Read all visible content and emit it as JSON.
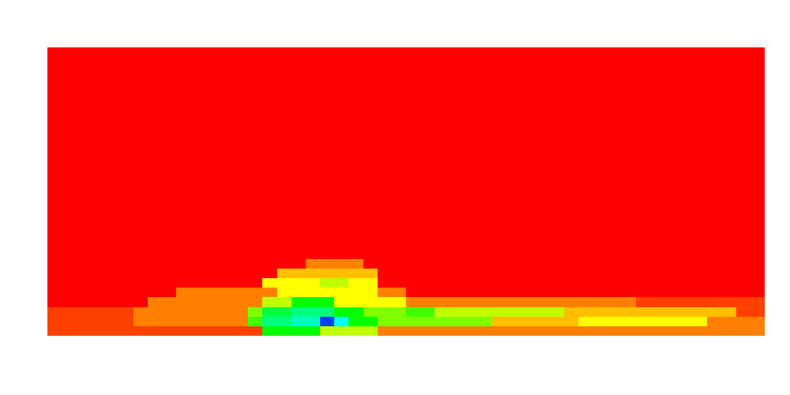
{
  "chart_data": {
    "type": "heatmap",
    "tick_labels": false,
    "zlim": [
      0,
      1
    ],
    "cells": [
      [
        0,
        0,
        0,
        0,
        0,
        0,
        0,
        0,
        0,
        0,
        0,
        0,
        0,
        0,
        0,
        0,
        0,
        0,
        0,
        0,
        0,
        0,
        0,
        0,
        0,
        0,
        0,
        0,
        0,
        0,
        0,
        0,
        0,
        0,
        0,
        0,
        0,
        0,
        0,
        0,
        0,
        0,
        0,
        0,
        0,
        0,
        0,
        0,
        0,
        0
      ],
      [
        0,
        0,
        0,
        0,
        0,
        0,
        0,
        0,
        0,
        0,
        0,
        0,
        0,
        0,
        0,
        0,
        0,
        0,
        0,
        0,
        0,
        0,
        0,
        0,
        0,
        0,
        0,
        0,
        0,
        0,
        0,
        0,
        0,
        0,
        0,
        0,
        0,
        0,
        0,
        0,
        0,
        0,
        0,
        0,
        0,
        0,
        0,
        0,
        0,
        0
      ],
      [
        0,
        0,
        0,
        0,
        0,
        0,
        0,
        0,
        0,
        0,
        0,
        0,
        0,
        0,
        0,
        0,
        0,
        0,
        0,
        0,
        0,
        0,
        0,
        0,
        0,
        0,
        0,
        0,
        0,
        0,
        0,
        0,
        0,
        0,
        0,
        0,
        0,
        0,
        0,
        0,
        0,
        0,
        0,
        0,
        0,
        0,
        0,
        0,
        0,
        0
      ],
      [
        0,
        0,
        0,
        0,
        0,
        0,
        0,
        0,
        0,
        0,
        0,
        0,
        0,
        0,
        0,
        0,
        0,
        0,
        0,
        0,
        0,
        0,
        0,
        0,
        0,
        0,
        0,
        0,
        0,
        0,
        0,
        0,
        0,
        0,
        0,
        0,
        0,
        0,
        0,
        0,
        0,
        0,
        0,
        0,
        0,
        0,
        0,
        0,
        0,
        0
      ],
      [
        0,
        0,
        0,
        0,
        0,
        0,
        0,
        0,
        0,
        0,
        0,
        0,
        0,
        0,
        0,
        0,
        0,
        0,
        0,
        0,
        0,
        0,
        0,
        0,
        0,
        0,
        0,
        0,
        0,
        0,
        0,
        0,
        0,
        0,
        0,
        0,
        0,
        0,
        0,
        0,
        0,
        0,
        0,
        0,
        0,
        0,
        0,
        0,
        0,
        0
      ],
      [
        0,
        0,
        0,
        0,
        0,
        0,
        0,
        0,
        0,
        0,
        0,
        0,
        0,
        0,
        0,
        0,
        0,
        0,
        0,
        0,
        0,
        0,
        0,
        0,
        0,
        0,
        0,
        0,
        0,
        0,
        0,
        0,
        0,
        0,
        0,
        0,
        0,
        0,
        0,
        0,
        0,
        0,
        0,
        0,
        0,
        0,
        0,
        0,
        0,
        0
      ],
      [
        0,
        0,
        0,
        0,
        0,
        0,
        0,
        0,
        0,
        0,
        0,
        0,
        0,
        0,
        0,
        0,
        0,
        0,
        0,
        0,
        0,
        0,
        0,
        0,
        0,
        0,
        0,
        0,
        0,
        0,
        0,
        0,
        0,
        0,
        0,
        0,
        0,
        0,
        0,
        0,
        0,
        0,
        0,
        0,
        0,
        0,
        0,
        0,
        0,
        0
      ],
      [
        0,
        0,
        0,
        0,
        0,
        0,
        0,
        0,
        0,
        0,
        0,
        0,
        0,
        0,
        0,
        0,
        0,
        0,
        0,
        0,
        0,
        0,
        0,
        0,
        0,
        0,
        0,
        0,
        0,
        0,
        0,
        0,
        0,
        0,
        0,
        0,
        0,
        0,
        0,
        0,
        0,
        0,
        0,
        0,
        0,
        0,
        0,
        0,
        0,
        0
      ],
      [
        0,
        0,
        0,
        0,
        0,
        0,
        0,
        0,
        0,
        0,
        0,
        0,
        0,
        0,
        0,
        0,
        0,
        0,
        0,
        0,
        0,
        0,
        0,
        0,
        0,
        0,
        0,
        0,
        0,
        0,
        0,
        0,
        0,
        0,
        0,
        0,
        0,
        0,
        0,
        0,
        0,
        0,
        0,
        0,
        0,
        0,
        0,
        0,
        0,
        0
      ],
      [
        0,
        0,
        0,
        0,
        0,
        0,
        0,
        0,
        0,
        0,
        0,
        0,
        0,
        0,
        0,
        0,
        0,
        0,
        0,
        0,
        0,
        0,
        0,
        0,
        0,
        0,
        0,
        0,
        0,
        0,
        0,
        0,
        0,
        0,
        0,
        0,
        0,
        0,
        0,
        0,
        0,
        0,
        0,
        0,
        0,
        0,
        0,
        0,
        0,
        0
      ],
      [
        0,
        0,
        0,
        0,
        0,
        0,
        0,
        0,
        0,
        0,
        0,
        0,
        0,
        0,
        0,
        0,
        0,
        0,
        0,
        0,
        0,
        0,
        0,
        0,
        0,
        0,
        0,
        0,
        0,
        0,
        0,
        0,
        0,
        0,
        0,
        0,
        0,
        0,
        0,
        0,
        0,
        0,
        0,
        0,
        0,
        0,
        0,
        0,
        0,
        0
      ],
      [
        0,
        0,
        0,
        0,
        0,
        0,
        0,
        0,
        0,
        0,
        0,
        0,
        0,
        0,
        0,
        0,
        0,
        0,
        0,
        0,
        0,
        0,
        0,
        0,
        0,
        0,
        0,
        0,
        0,
        0,
        0,
        0,
        0,
        0,
        0,
        0,
        0,
        0,
        0,
        0,
        0,
        0,
        0,
        0,
        0,
        0,
        0,
        0,
        0,
        0
      ],
      [
        0,
        0,
        0,
        0,
        0,
        0,
        0,
        0,
        0,
        0,
        0,
        0,
        0,
        0,
        0,
        0,
        0,
        0,
        0,
        0,
        0,
        0,
        0,
        0,
        0,
        0,
        0,
        0,
        0,
        0,
        0,
        0,
        0,
        0,
        0,
        0,
        0,
        0,
        0,
        0,
        0,
        0,
        0,
        0,
        0,
        0,
        0,
        0,
        0,
        0
      ],
      [
        0,
        0,
        0,
        0,
        0,
        0,
        0,
        0,
        0,
        0,
        0,
        0,
        0,
        0,
        0,
        0,
        0,
        0,
        0,
        0,
        0,
        0,
        0,
        0,
        0,
        0,
        0,
        0,
        0,
        0,
        0,
        0,
        0,
        0,
        0,
        0,
        0,
        0,
        0,
        0,
        0,
        0,
        0,
        0,
        0,
        0,
        0,
        0,
        0,
        0
      ],
      [
        0,
        0,
        0,
        0,
        0,
        0,
        0,
        0,
        0,
        0,
        0,
        0,
        0,
        0,
        0,
        0,
        0,
        0,
        0,
        0,
        0,
        0,
        0,
        0,
        0,
        0,
        0,
        0,
        0,
        0,
        0,
        0,
        0,
        0,
        0,
        0,
        0,
        0,
        0,
        0,
        0,
        0,
        0,
        0,
        0,
        0,
        0,
        0,
        0,
        0
      ],
      [
        0,
        0,
        0,
        0,
        0,
        0,
        0,
        0,
        0,
        0,
        0,
        0,
        0,
        0,
        0,
        0,
        0,
        0,
        0,
        0,
        0,
        0,
        0,
        0,
        0,
        0,
        0,
        0,
        0,
        0,
        0,
        0,
        0,
        0,
        0,
        0,
        0,
        0,
        0,
        0,
        0,
        0,
        0,
        0,
        0,
        0,
        0,
        0,
        0,
        0
      ],
      [
        0,
        0,
        0,
        0,
        0,
        0,
        0,
        0,
        0,
        0,
        0,
        0,
        0,
        0,
        0,
        0,
        0,
        0,
        0,
        0,
        0,
        0,
        0,
        0,
        0,
        0,
        0,
        0,
        0,
        0,
        0,
        0,
        0,
        0,
        0,
        0,
        0,
        0,
        0,
        0,
        0,
        0,
        0,
        0,
        0,
        0,
        0,
        0,
        0,
        0
      ],
      [
        0,
        0,
        0,
        0,
        0,
        0,
        0,
        0,
        0,
        0,
        0,
        0,
        0,
        0,
        0,
        0,
        0,
        0,
        0,
        0,
        0,
        0,
        0,
        0,
        0,
        0,
        0,
        0,
        0,
        0,
        0,
        0,
        0,
        0,
        0,
        0,
        0,
        0,
        0,
        0,
        0,
        0,
        0,
        0,
        0,
        0,
        0,
        0,
        0,
        0
      ],
      [
        0,
        0,
        0,
        0,
        0,
        0,
        0,
        0,
        0,
        0,
        0,
        0,
        0,
        0,
        0,
        0,
        0,
        0,
        0,
        0,
        0,
        0,
        0,
        0,
        0,
        0,
        0,
        0,
        0,
        0,
        0,
        0,
        0,
        0,
        0,
        0,
        0,
        0,
        0,
        0,
        0,
        0,
        0,
        0,
        0,
        0,
        0,
        0,
        0,
        0
      ],
      [
        0,
        0,
        0,
        0,
        0,
        0,
        0,
        0,
        0,
        0,
        0,
        0,
        0,
        0,
        0,
        0,
        0,
        0,
        0,
        0,
        0,
        0,
        0,
        0,
        0,
        0,
        0,
        0,
        0,
        0,
        0,
        0,
        0,
        0,
        0,
        0,
        0,
        0,
        0,
        0,
        0,
        0,
        0,
        0,
        0,
        0,
        0,
        0,
        0,
        0
      ],
      [
        0,
        0,
        0,
        0,
        0,
        0,
        0,
        0,
        0,
        0,
        0,
        0,
        0,
        0,
        0,
        0,
        0,
        0,
        0,
        0,
        0,
        0,
        0,
        0,
        0,
        0,
        0,
        0,
        0,
        0,
        0,
        0,
        0,
        0,
        0,
        0,
        0,
        0,
        0,
        0,
        0,
        0,
        0,
        0,
        0,
        0,
        0,
        0,
        0,
        0
      ],
      [
        0,
        0,
        0,
        0,
        0,
        0,
        0,
        0,
        0,
        0,
        0,
        0,
        0,
        0,
        0,
        0,
        0,
        0,
        0,
        0,
        0,
        0,
        0,
        0,
        0,
        0,
        0,
        0,
        0,
        0,
        0,
        0,
        0,
        0,
        0,
        0,
        0,
        0,
        0,
        0,
        0,
        0,
        0,
        0,
        0,
        0,
        0,
        0,
        0,
        0
      ],
      [
        0,
        0,
        0,
        0,
        0,
        0,
        0,
        0,
        0,
        0,
        0,
        0,
        0,
        0,
        0,
        0,
        0,
        0,
        0.1,
        0.1,
        0.1,
        0.1,
        0,
        0,
        0,
        0,
        0,
        0,
        0,
        0,
        0,
        0,
        0,
        0,
        0,
        0,
        0,
        0,
        0,
        0,
        0,
        0,
        0,
        0,
        0,
        0,
        0,
        0,
        0,
        0
      ],
      [
        0,
        0,
        0,
        0,
        0,
        0,
        0,
        0,
        0,
        0,
        0,
        0,
        0,
        0,
        0,
        0,
        0.15,
        0.15,
        0.15,
        0.15,
        0.15,
        0.15,
        0.15,
        0,
        0,
        0,
        0,
        0,
        0,
        0,
        0,
        0,
        0,
        0,
        0,
        0,
        0,
        0,
        0,
        0,
        0,
        0,
        0,
        0,
        0,
        0,
        0,
        0,
        0,
        0
      ],
      [
        0,
        0,
        0,
        0,
        0,
        0,
        0,
        0,
        0,
        0,
        0,
        0,
        0,
        0,
        0,
        0.2,
        0.2,
        0.2,
        0.2,
        0.25,
        0.25,
        0.2,
        0.2,
        0,
        0,
        0,
        0,
        0,
        0,
        0,
        0,
        0,
        0,
        0,
        0,
        0,
        0,
        0,
        0,
        0,
        0,
        0,
        0,
        0,
        0,
        0,
        0,
        0,
        0,
        0
      ],
      [
        0,
        0,
        0,
        0,
        0,
        0,
        0,
        0,
        0,
        0.1,
        0.1,
        0.1,
        0.1,
        0.1,
        0.1,
        0.1,
        0.2,
        0.2,
        0.2,
        0.2,
        0.2,
        0.2,
        0.2,
        0.1,
        0.1,
        0,
        0,
        0,
        0,
        0,
        0,
        0,
        0,
        0,
        0,
        0,
        0,
        0,
        0,
        0,
        0,
        0,
        0,
        0,
        0,
        0,
        0,
        0,
        0,
        0
      ],
      [
        0,
        0,
        0,
        0,
        0,
        0,
        0,
        0.1,
        0.1,
        0.1,
        0.1,
        0.1,
        0.1,
        0.1,
        0.1,
        0.25,
        0.25,
        0.4,
        0.4,
        0.4,
        0.2,
        0.2,
        0.2,
        0.2,
        0.2,
        0.1,
        0.1,
        0.1,
        0.1,
        0.1,
        0.1,
        0.1,
        0.1,
        0.1,
        0.1,
        0.1,
        0.1,
        0.1,
        0.1,
        0.1,
        0.1,
        0.05,
        0.05,
        0.05,
        0.05,
        0.05,
        0.05,
        0.05,
        0.05,
        0.05
      ],
      [
        0.05,
        0.05,
        0.05,
        0.05,
        0.05,
        0.05,
        0.1,
        0.1,
        0.1,
        0.1,
        0.1,
        0.1,
        0.1,
        0.1,
        0.3,
        0.45,
        0.45,
        0.5,
        0.5,
        0.5,
        0.4,
        0.4,
        0.3,
        0.3,
        0.3,
        0.35,
        0.35,
        0.25,
        0.25,
        0.25,
        0.25,
        0.25,
        0.25,
        0.25,
        0.25,
        0.25,
        0.15,
        0.15,
        0.15,
        0.15,
        0.15,
        0.15,
        0.15,
        0.15,
        0.15,
        0.15,
        0.15,
        0.15,
        0.05,
        0.05
      ],
      [
        0.05,
        0.05,
        0.05,
        0.05,
        0.05,
        0.05,
        0.1,
        0.1,
        0.1,
        0.1,
        0.1,
        0.1,
        0.1,
        0.1,
        0.35,
        0.5,
        0.5,
        0.55,
        0.55,
        0.75,
        0.6,
        0.4,
        0.4,
        0.3,
        0.3,
        0.3,
        0.3,
        0.3,
        0.3,
        0.3,
        0.3,
        0.15,
        0.15,
        0.15,
        0.15,
        0.15,
        0.15,
        0.2,
        0.2,
        0.2,
        0.2,
        0.2,
        0.2,
        0.2,
        0.2,
        0.2,
        0.1,
        0.1,
        0.1,
        0.1
      ],
      [
        0.05,
        0.05,
        0.05,
        0.05,
        0.05,
        0.05,
        0.05,
        0.05,
        0.05,
        0.05,
        0.05,
        0.05,
        0.05,
        0.05,
        0.05,
        0.4,
        0.4,
        0.4,
        0.4,
        0.25,
        0.25,
        0.25,
        0.25,
        0.1,
        0.1,
        0.1,
        0.1,
        0.1,
        0.1,
        0.1,
        0.1,
        0.1,
        0.1,
        0.1,
        0.1,
        0.1,
        0.1,
        0.1,
        0.1,
        0.1,
        0.1,
        0.1,
        0.1,
        0.1,
        0.1,
        0.1,
        0.1,
        0.1,
        0.1,
        0.1
      ]
    ]
  }
}
